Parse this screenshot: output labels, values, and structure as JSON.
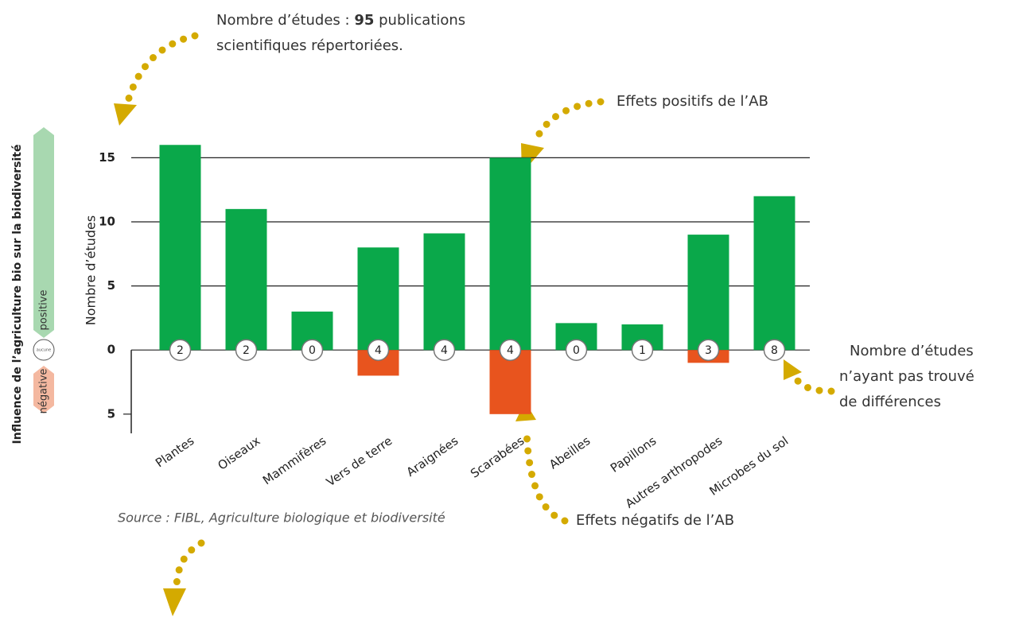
{
  "chart_data": {
    "type": "bar",
    "y_label": "Nombre d’études",
    "side_label": "Influence de l’agriculture bio sur la biodiversité",
    "side_positive": "positive",
    "side_negative": "négative",
    "side_neutral": "aucune",
    "categories": [
      "Plantes",
      "Oiseaux",
      "Mammifères",
      "Vers de terre",
      "Araignées",
      "Scarabées",
      "Abeilles",
      "Papillons",
      "Autres arthropodes",
      "Microbes du sol"
    ],
    "series": [
      {
        "name": "Effets positifs de l’AB",
        "color": "#0aa84a",
        "values": [
          16,
          11,
          3,
          8,
          9.1,
          15,
          2.1,
          2,
          9,
          12
        ]
      },
      {
        "name": "Effets négatifs de l’AB",
        "color": "#e8541e",
        "values": [
          0,
          0,
          0,
          -2,
          0,
          -5,
          0,
          0,
          -1,
          0
        ]
      }
    ],
    "neutral": {
      "lines": [
        "Nombre d’études",
        "n’ayant pas trouvé",
        "de différences"
      ],
      "values": [
        2,
        2,
        0,
        4,
        4,
        4,
        0,
        1,
        3,
        8
      ]
    },
    "top_note": {
      "before": "Nombre d’études :",
      "count": 95,
      "after": "publications",
      "line2": "scientifiques répertoriées."
    },
    "source": "Source : FIBL, Agriculture biologique et biodiversité",
    "ylim": [
      -6.5,
      18
    ],
    "yticks": [
      {
        "value": -5,
        "label": "5"
      },
      0,
      5,
      10,
      15
    ],
    "grid": true
  }
}
